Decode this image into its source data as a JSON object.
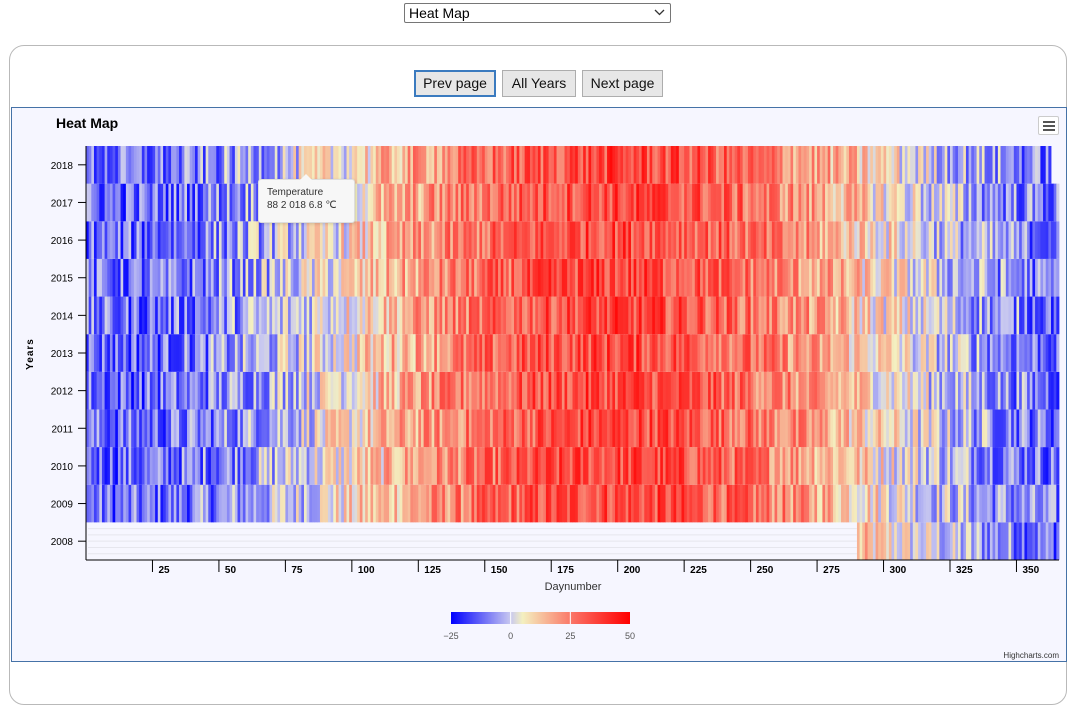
{
  "selector": {
    "value": "Heat Map"
  },
  "nav": {
    "prev": "Prev page",
    "all": "All Years",
    "next": "Next page"
  },
  "tooltip": {
    "title": "Temperature",
    "value": "88 2 018 6.8 ℃"
  },
  "credit": "Highcharts.com",
  "icons": {
    "menu": "hamburger-menu-icon",
    "dropdown": "chevron-down-icon"
  },
  "chart_data": {
    "type": "heatmap",
    "title": "Heat Map",
    "xlabel": "Daynumber",
    "ylabel": "Years",
    "x_ticks": [
      25,
      50,
      75,
      100,
      125,
      150,
      175,
      200,
      225,
      250,
      275,
      300,
      325,
      350
    ],
    "xlim": [
      0,
      366
    ],
    "y_categories": [
      "2008",
      "2009",
      "2010",
      "2011",
      "2012",
      "2013",
      "2014",
      "2015",
      "2016",
      "2017",
      "2018"
    ],
    "series_name": "Temperature",
    "color_axis": {
      "min": -25,
      "max": 50,
      "ticks": [
        "−25",
        "0",
        "25",
        "50"
      ],
      "stops": [
        "#0000ff",
        "#f4f0c0",
        "#ff0000"
      ]
    },
    "legend_placement": "bottom-center",
    "missing_2008_days": [
      1,
      290
    ],
    "missing_2018_after_day": 363,
    "seasonal_profile": {
      "winter_value": -12,
      "summer_value": 35,
      "peak_day": 200
    }
  }
}
